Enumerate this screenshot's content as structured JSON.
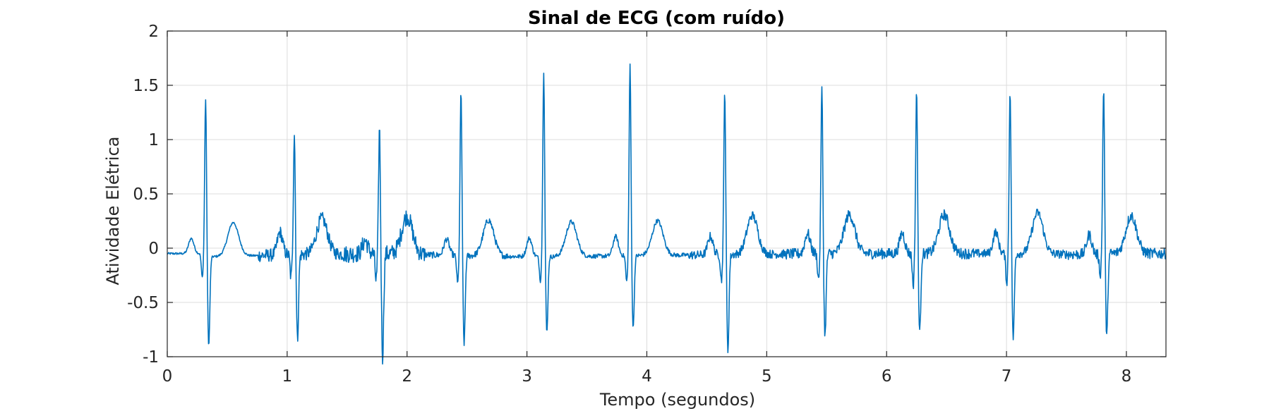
{
  "chart_data": {
    "type": "line",
    "title": "Sinal de ECG (com ruído)",
    "xlabel": "Tempo (segundos)",
    "ylabel": "Atividade Elétrica",
    "xlim": [
      0,
      8.33
    ],
    "ylim": [
      -1,
      2
    ],
    "x_ticks": [
      0,
      1,
      2,
      3,
      4,
      5,
      6,
      7,
      8
    ],
    "x_tick_labels": [
      "0",
      "1",
      "2",
      "3",
      "4",
      "5",
      "6",
      "7",
      "8"
    ],
    "y_ticks": [
      2,
      1.5,
      1,
      0.5,
      0,
      -0.5,
      -1
    ],
    "y_tick_labels": [
      "2",
      "1.5",
      "1",
      "0.5",
      "0",
      "-0.5",
      "-1"
    ],
    "grid": true,
    "line_color": "#0072BD",
    "beats": [
      {
        "t": 0.32,
        "r": 1.46,
        "q": -0.22,
        "s": -0.82,
        "p": 0.14,
        "t_wave": 0.23,
        "noise": 0.01,
        "base": -0.08
      },
      {
        "t": 1.06,
        "r": 1.13,
        "q": -0.21,
        "s": -0.78,
        "p": 0.21,
        "t_wave": 0.25,
        "noise": 0.06,
        "base": -0.06
      },
      {
        "t": 1.77,
        "r": 1.17,
        "q": -0.25,
        "s": -0.95,
        "p": 0.12,
        "t_wave": 0.27,
        "noise": 0.08,
        "base": -0.05
      },
      {
        "t": 2.45,
        "r": 1.53,
        "q": -0.26,
        "s": -0.81,
        "p": 0.15,
        "t_wave": 0.25,
        "noise": 0.03,
        "base": -0.07
      },
      {
        "t": 3.14,
        "r": 1.72,
        "q": -0.22,
        "s": -0.7,
        "p": 0.17,
        "t_wave": 0.24,
        "noise": 0.02,
        "base": -0.08
      },
      {
        "t": 3.86,
        "r": 1.76,
        "q": -0.24,
        "s": -0.67,
        "p": 0.18,
        "t_wave": 0.24,
        "noise": 0.02,
        "base": -0.07
      },
      {
        "t": 4.65,
        "r": 1.52,
        "q": -0.24,
        "s": -0.89,
        "p": 0.17,
        "t_wave": 0.28,
        "noise": 0.04,
        "base": -0.06
      },
      {
        "t": 5.46,
        "r": 1.53,
        "q": -0.24,
        "s": -0.76,
        "p": 0.19,
        "t_wave": 0.28,
        "noise": 0.05,
        "base": -0.05
      },
      {
        "t": 6.25,
        "r": 1.52,
        "q": -0.29,
        "s": -0.74,
        "p": 0.19,
        "t_wave": 0.28,
        "noise": 0.05,
        "base": -0.05
      },
      {
        "t": 7.03,
        "r": 1.52,
        "q": -0.27,
        "s": -0.78,
        "p": 0.2,
        "t_wave": 0.3,
        "noise": 0.04,
        "base": -0.05
      },
      {
        "t": 7.81,
        "r": 1.55,
        "q": -0.18,
        "s": -0.77,
        "p": 0.18,
        "t_wave": 0.27,
        "noise": 0.05,
        "base": -0.06
      }
    ],
    "start_value": -0.05,
    "end_value": -0.05
  }
}
